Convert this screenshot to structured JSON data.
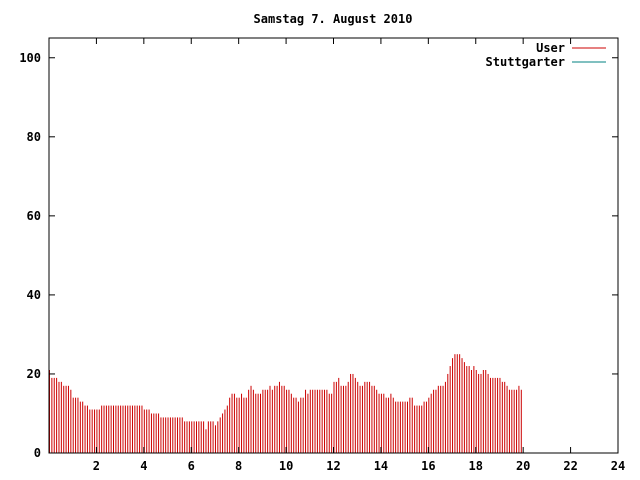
{
  "chart_data": {
    "type": "bar",
    "title": "Samstag 7. August 2010",
    "xlabel": "",
    "ylabel": "",
    "xlim": [
      0,
      24
    ],
    "ylim": [
      0,
      105
    ],
    "x_ticks": [
      "2",
      "4",
      "6",
      "8",
      "10",
      "12",
      "14",
      "16",
      "18",
      "20",
      "22",
      "24"
    ],
    "y_ticks": [
      "0",
      "20",
      "40",
      "60",
      "80",
      "100"
    ],
    "grid": false,
    "legend_position": "top-right",
    "series": [
      {
        "name": "User",
        "color": "#cc0000",
        "sample_interval_hours": 0.1,
        "values": [
          21,
          19,
          19,
          19,
          18,
          18,
          17,
          17,
          17,
          16,
          14,
          14,
          14,
          13,
          13,
          12,
          12,
          11,
          11,
          11,
          11,
          11,
          12,
          12,
          12,
          12,
          12,
          12,
          12,
          12,
          12,
          12,
          12,
          12,
          12,
          12,
          12,
          12,
          12,
          12,
          11,
          11,
          11,
          10,
          10,
          10,
          10,
          9,
          9,
          9,
          9,
          9,
          9,
          9,
          9,
          9,
          9,
          8,
          8,
          8,
          8,
          8,
          8,
          8,
          8,
          8,
          6,
          8,
          8,
          8,
          7,
          8,
          9,
          10,
          11,
          12,
          14,
          15,
          15,
          14,
          14,
          15,
          14,
          14,
          16,
          17,
          16,
          15,
          15,
          15,
          16,
          16,
          16,
          17,
          16,
          17,
          17,
          18,
          17,
          17,
          16,
          16,
          15,
          14,
          14,
          13,
          14,
          14,
          16,
          15,
          16,
          16,
          16,
          16,
          16,
          16,
          16,
          16,
          15,
          15,
          18,
          18,
          19,
          17,
          17,
          17,
          18,
          20,
          20,
          19,
          18,
          17,
          17,
          18,
          18,
          18,
          17,
          17,
          16,
          15,
          15,
          15,
          14,
          14,
          15,
          14,
          13,
          13,
          13,
          13,
          13,
          13,
          14,
          14,
          12,
          12,
          12,
          12,
          13,
          13,
          14,
          15,
          16,
          16,
          17,
          17,
          17,
          18,
          20,
          22,
          24,
          25,
          25,
          25,
          24,
          23,
          22,
          22,
          21,
          22,
          21,
          20,
          20,
          21,
          21,
          20,
          19,
          19,
          19,
          19,
          19,
          18,
          18,
          17,
          16,
          16,
          16,
          16,
          17,
          16
        ]
      },
      {
        "name": "Stuttgarter",
        "color": "#008080",
        "values": []
      }
    ]
  }
}
